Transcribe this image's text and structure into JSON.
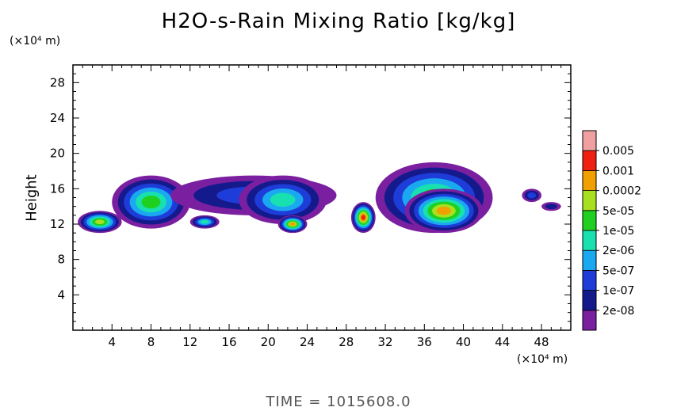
{
  "chart_data": {
    "type": "heatmap",
    "title": "H2O-s-Rain Mixing Ratio [kg/kg]",
    "ylabel": "Height",
    "xlabel": "",
    "x_unit": "(×10⁴ m)",
    "y_unit": "(×10⁴ m)",
    "footer": "TIME = 1015608.0",
    "xlim": [
      0,
      51
    ],
    "ylim": [
      0,
      30
    ],
    "x_ticks": [
      4,
      8,
      12,
      16,
      20,
      24,
      28,
      32,
      36,
      40,
      44,
      48
    ],
    "y_ticks": [
      4,
      8,
      12,
      16,
      20,
      24,
      28
    ],
    "colorbar": {
      "labels": [
        "2e-08",
        "1e-07",
        "5e-07",
        "2e-06",
        "1e-05",
        "5e-05",
        "0.0002",
        "0.001",
        "0.005"
      ],
      "colors": [
        "#7a1fa0",
        "#141a8c",
        "#1e3cd8",
        "#1aa8f0",
        "#18e0b0",
        "#20d020",
        "#a8e020",
        "#f0a000",
        "#f02010",
        "#f0a0a0"
      ]
    },
    "regions": [
      {
        "x": [
          0.5,
          5
        ],
        "y": [
          11,
          13.5
        ],
        "level": 6
      },
      {
        "x": [
          4,
          12
        ],
        "y": [
          11.5,
          17.5
        ],
        "level": 5
      },
      {
        "x": [
          10,
          27
        ],
        "y": [
          13,
          17.5
        ],
        "level": 2
      },
      {
        "x": [
          12,
          15
        ],
        "y": [
          11.5,
          13
        ],
        "level": 4
      },
      {
        "x": [
          17,
          26
        ],
        "y": [
          12,
          17.5
        ],
        "level": 4
      },
      {
        "x": [
          21,
          24
        ],
        "y": [
          11,
          13
        ],
        "level": 7
      },
      {
        "x": [
          28.5,
          31
        ],
        "y": [
          11,
          14.5
        ],
        "level": 8
      },
      {
        "x": [
          31,
          43
        ],
        "y": [
          11,
          19
        ],
        "level": 5
      },
      {
        "x": [
          34,
          42
        ],
        "y": [
          11,
          16
        ],
        "level": 7
      },
      {
        "x": [
          46,
          48
        ],
        "y": [
          14.5,
          16
        ],
        "level": 2
      },
      {
        "x": [
          48,
          50
        ],
        "y": [
          13.5,
          14.5
        ],
        "level": 1
      }
    ]
  }
}
